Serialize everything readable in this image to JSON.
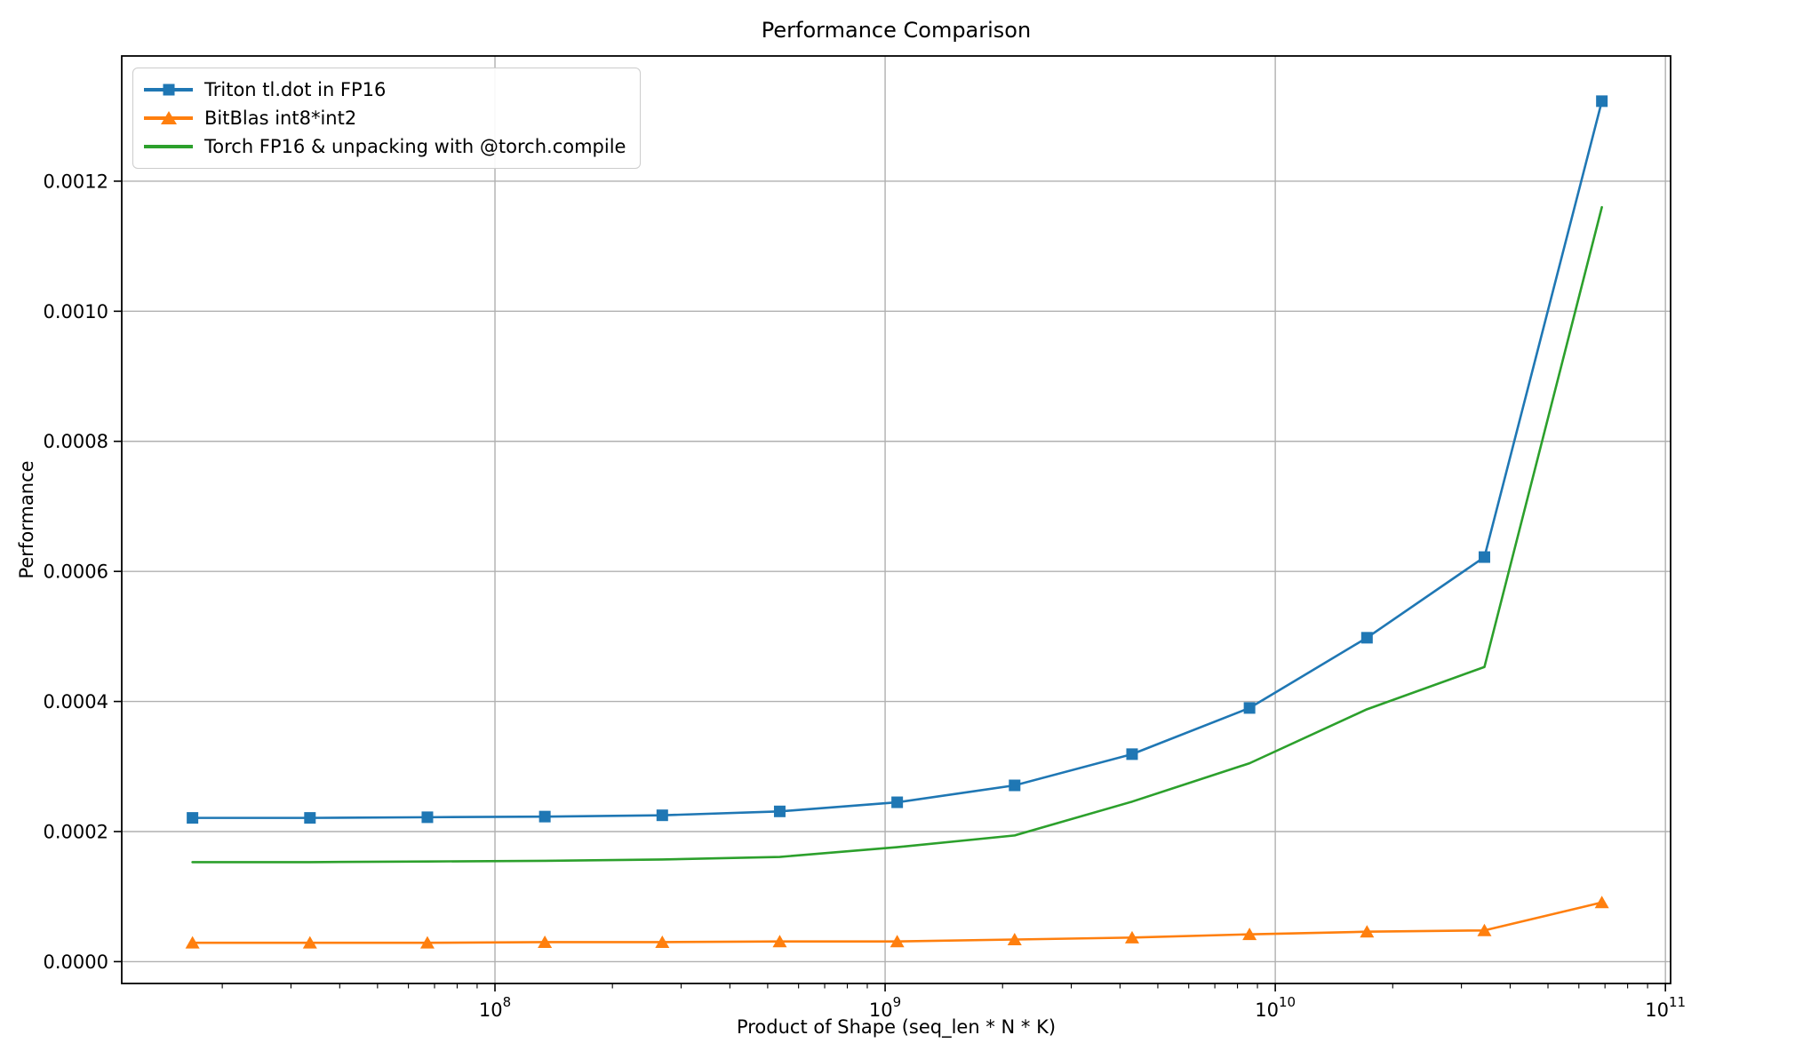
{
  "title": "Performance Comparison",
  "axes": {
    "xlabel": "Product of Shape (seq_len * N * K)",
    "ylabel": "Performance",
    "x_tick_exponents": [
      8,
      9,
      10,
      11
    ],
    "y_tick_labels": [
      "0.0000",
      "0.0002",
      "0.0004",
      "0.0006",
      "0.0008",
      "0.0010",
      "0.0012"
    ]
  },
  "legend": {
    "items": [
      {
        "label": "Triton tl.dot in FP16",
        "color": "#1f77b4",
        "marker": "square"
      },
      {
        "label": "BitBlas int8*int2",
        "color": "#ff7f0e",
        "marker": "triangle"
      },
      {
        "label": "Torch FP16 & unpacking with @torch.compile",
        "color": "#2ca02c",
        "marker": "none"
      }
    ]
  },
  "colors": {
    "grid": "#b0b0b0",
    "spine": "#000000",
    "background": "#ffffff",
    "blue": "#1f77b4",
    "orange": "#ff7f0e",
    "green": "#2ca02c"
  },
  "chart_data": {
    "type": "line",
    "title": "Performance Comparison",
    "xlabel": "Product of Shape (seq_len * N * K)",
    "ylabel": "Performance",
    "x_scale": "log",
    "grid": true,
    "legend_position": "upper left",
    "xlim": [
      11050000,
      103100000000
    ],
    "ylim": [
      -3.36e-05,
      0.0013925
    ],
    "xticks": [
      100000000,
      1000000000,
      10000000000,
      100000000000
    ],
    "yticks": [
      0,
      0.0002,
      0.0004,
      0.0006,
      0.0008,
      0.001,
      0.0012
    ],
    "x": [
      16777216,
      33554432,
      67108864,
      134217728,
      268435456,
      536870912,
      1073741824,
      2147483648,
      4294967296,
      8589934592,
      17179869184,
      34359738368,
      68719476736
    ],
    "series": [
      {
        "name": "Triton tl.dot in FP16",
        "color": "#1f77b4",
        "marker": "square",
        "values": [
          0.000221,
          0.000221,
          0.000222,
          0.000223,
          0.000225,
          0.000231,
          0.000245,
          0.000271,
          0.000319,
          0.00039,
          0.000498,
          0.000622,
          0.001323
        ]
      },
      {
        "name": "BitBlas int8*int2",
        "color": "#ff7f0e",
        "marker": "triangle",
        "values": [
          2.9e-05,
          2.9e-05,
          2.9e-05,
          3e-05,
          3e-05,
          3.1e-05,
          3.1e-05,
          3.4e-05,
          3.7e-05,
          4.2e-05,
          4.6e-05,
          4.8e-05,
          9.1e-05
        ]
      },
      {
        "name": "Torch FP16 & unpacking with @torch.compile",
        "color": "#2ca02c",
        "marker": "none",
        "values": [
          0.000153,
          0.000153,
          0.000154,
          0.000155,
          0.000157,
          0.000161,
          0.000176,
          0.000194,
          0.000246,
          0.000305,
          0.000388,
          0.000453,
          0.00116
        ]
      }
    ]
  }
}
